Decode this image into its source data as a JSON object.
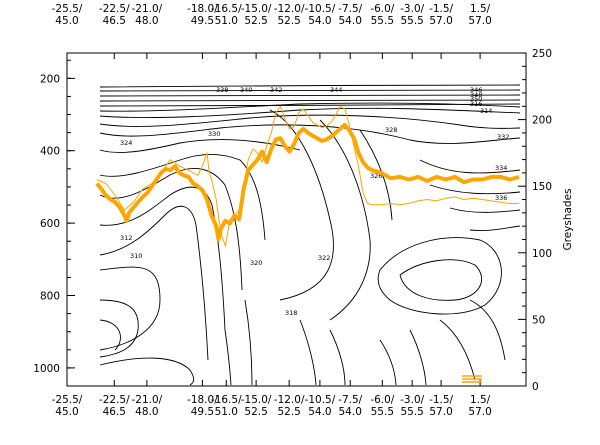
{
  "chart_data": {
    "type": "contour",
    "top_axis_ticks": [
      {
        "lon": "-25.5/",
        "lat": "45.0"
      },
      {
        "lon": "-22.5/",
        "lat": "46.5"
      },
      {
        "lon": "-21.0/",
        "lat": "48.0"
      },
      {
        "lon": "-18.0/",
        "lat": "49.5"
      },
      {
        "lon": "-16.5/",
        "lat": "51.0"
      },
      {
        "lon": "-15.0/",
        "lat": "52.5"
      },
      {
        "lon": "-12.0/",
        "lat": "52.5"
      },
      {
        "lon": "-10.5/",
        "lat": "54.0"
      },
      {
        "lon": "-7.5/",
        "lat": "54.0"
      },
      {
        "lon": "-6.0/",
        "lat": "55.5"
      },
      {
        "lon": "-3.0/",
        "lat": "55.5"
      },
      {
        "lon": "-1.5/",
        "lat": "57.0"
      },
      {
        "lon": "1.5/",
        "lat": "57.0"
      }
    ],
    "bottom_axis_ticks": [
      {
        "lon": "-25.5/",
        "lat": "45.0"
      },
      {
        "lon": "-22.5/",
        "lat": "46.5"
      },
      {
        "lon": "-21.0/",
        "lat": "48.0"
      },
      {
        "lon": "-18.0/",
        "lat": "49.5"
      },
      {
        "lon": "-16.5/",
        "lat": "51.0"
      },
      {
        "lon": "-15.0/",
        "lat": "52.5"
      },
      {
        "lon": "-12.0/",
        "lat": "52.5"
      },
      {
        "lon": "-10.5/",
        "lat": "54.0"
      },
      {
        "lon": "-7.5/",
        "lat": "54.0"
      },
      {
        "lon": "-6.0/",
        "lat": "55.5"
      },
      {
        "lon": "-3.0/",
        "lat": "55.5"
      },
      {
        "lon": "-1.5/",
        "lat": "57.0"
      },
      {
        "lon": "1.5/",
        "lat": "57.0"
      }
    ],
    "left_axis": {
      "range": [
        1050,
        130
      ],
      "ticks": [
        200,
        400,
        600,
        800,
        1000
      ]
    },
    "right_axis": {
      "label": "Greyshades",
      "range": [
        0,
        250
      ],
      "ticks": [
        0,
        50,
        100,
        150,
        200,
        250
      ]
    },
    "contour_labels": [
      "324",
      "330",
      "338",
      "340",
      "342",
      "344",
      "346",
      "348",
      "350",
      "316",
      "314",
      "312",
      "310",
      "320",
      "322",
      "326",
      "328",
      "332",
      "334",
      "336",
      "318"
    ],
    "orange_thick_series": [
      [
        0.0,
        152
      ],
      [
        0.01,
        148
      ],
      [
        0.02,
        143
      ],
      [
        0.03,
        140
      ],
      [
        0.04,
        138
      ],
      [
        0.05,
        134
      ],
      [
        0.06,
        128
      ],
      [
        0.065,
        124
      ],
      [
        0.07,
        130
      ],
      [
        0.08,
        134
      ],
      [
        0.09,
        138
      ],
      [
        0.1,
        142
      ],
      [
        0.11,
        145
      ],
      [
        0.12,
        150
      ],
      [
        0.13,
        155
      ],
      [
        0.14,
        160
      ],
      [
        0.15,
        163
      ],
      [
        0.16,
        162
      ],
      [
        0.17,
        165
      ],
      [
        0.18,
        160
      ],
      [
        0.19,
        158
      ],
      [
        0.2,
        157
      ],
      [
        0.21,
        152
      ],
      [
        0.22,
        150
      ],
      [
        0.23,
        147
      ],
      [
        0.24,
        140
      ],
      [
        0.25,
        128
      ],
      [
        0.26,
        120
      ],
      [
        0.265,
        110
      ],
      [
        0.27,
        118
      ],
      [
        0.28,
        124
      ],
      [
        0.29,
        122
      ],
      [
        0.3,
        128
      ],
      [
        0.31,
        125
      ],
      [
        0.32,
        148
      ],
      [
        0.33,
        162
      ],
      [
        0.34,
        166
      ],
      [
        0.35,
        170
      ],
      [
        0.36,
        176
      ],
      [
        0.37,
        168
      ],
      [
        0.38,
        178
      ],
      [
        0.39,
        185
      ],
      [
        0.4,
        186
      ],
      [
        0.41,
        180
      ],
      [
        0.42,
        176
      ],
      [
        0.43,
        182
      ],
      [
        0.44,
        190
      ],
      [
        0.45,
        193
      ],
      [
        0.46,
        190
      ],
      [
        0.47,
        188
      ],
      [
        0.48,
        186
      ],
      [
        0.49,
        184
      ],
      [
        0.5,
        185
      ],
      [
        0.51,
        187
      ],
      [
        0.52,
        190
      ],
      [
        0.53,
        193
      ],
      [
        0.54,
        196
      ],
      [
        0.55,
        192
      ],
      [
        0.56,
        186
      ],
      [
        0.57,
        175
      ],
      [
        0.58,
        168
      ],
      [
        0.59,
        164
      ],
      [
        0.6,
        162
      ],
      [
        0.62,
        160
      ],
      [
        0.64,
        156
      ],
      [
        0.66,
        157
      ],
      [
        0.68,
        155
      ],
      [
        0.7,
        157
      ],
      [
        0.72,
        154
      ],
      [
        0.74,
        157
      ],
      [
        0.76,
        155
      ],
      [
        0.78,
        157
      ],
      [
        0.8,
        153
      ],
      [
        0.82,
        155
      ],
      [
        0.84,
        155
      ],
      [
        0.86,
        157
      ],
      [
        0.88,
        157
      ],
      [
        0.9,
        155
      ],
      [
        0.92,
        157
      ]
    ],
    "orange_thin_series": [
      [
        0.0,
        155
      ],
      [
        0.02,
        152
      ],
      [
        0.04,
        143
      ],
      [
        0.06,
        132
      ],
      [
        0.08,
        138
      ],
      [
        0.1,
        148
      ],
      [
        0.12,
        152
      ],
      [
        0.14,
        160
      ],
      [
        0.16,
        170
      ],
      [
        0.18,
        165
      ],
      [
        0.2,
        162
      ],
      [
        0.22,
        158
      ],
      [
        0.23,
        165
      ],
      [
        0.24,
        175
      ],
      [
        0.245,
        160
      ],
      [
        0.25,
        155
      ],
      [
        0.26,
        140
      ],
      [
        0.27,
        115
      ],
      [
        0.28,
        105
      ],
      [
        0.29,
        125
      ],
      [
        0.3,
        128
      ],
      [
        0.31,
        132
      ],
      [
        0.32,
        150
      ],
      [
        0.33,
        170
      ],
      [
        0.34,
        178
      ],
      [
        0.35,
        175
      ],
      [
        0.36,
        168
      ],
      [
        0.37,
        180
      ],
      [
        0.38,
        190
      ],
      [
        0.39,
        205
      ],
      [
        0.4,
        210
      ],
      [
        0.41,
        200
      ],
      [
        0.42,
        193
      ],
      [
        0.43,
        195
      ],
      [
        0.44,
        205
      ],
      [
        0.45,
        208
      ],
      [
        0.46,
        203
      ],
      [
        0.47,
        198
      ],
      [
        0.48,
        196
      ],
      [
        0.49,
        194
      ],
      [
        0.5,
        195
      ],
      [
        0.51,
        198
      ],
      [
        0.52,
        203
      ],
      [
        0.53,
        210
      ],
      [
        0.54,
        208
      ],
      [
        0.55,
        196
      ],
      [
        0.56,
        180
      ],
      [
        0.57,
        165
      ],
      [
        0.58,
        145
      ],
      [
        0.59,
        137
      ],
      [
        0.6,
        136
      ],
      [
        0.62,
        136
      ],
      [
        0.64,
        137
      ],
      [
        0.66,
        136
      ],
      [
        0.68,
        137
      ],
      [
        0.7,
        139
      ],
      [
        0.72,
        140
      ],
      [
        0.74,
        139
      ],
      [
        0.76,
        141
      ],
      [
        0.78,
        142
      ],
      [
        0.8,
        140
      ],
      [
        0.82,
        141
      ],
      [
        0.84,
        140
      ],
      [
        0.86,
        139
      ],
      [
        0.88,
        138
      ],
      [
        0.9,
        137
      ],
      [
        0.92,
        137
      ]
    ]
  },
  "ui": {
    "greyshades_label": "Greyshades"
  }
}
